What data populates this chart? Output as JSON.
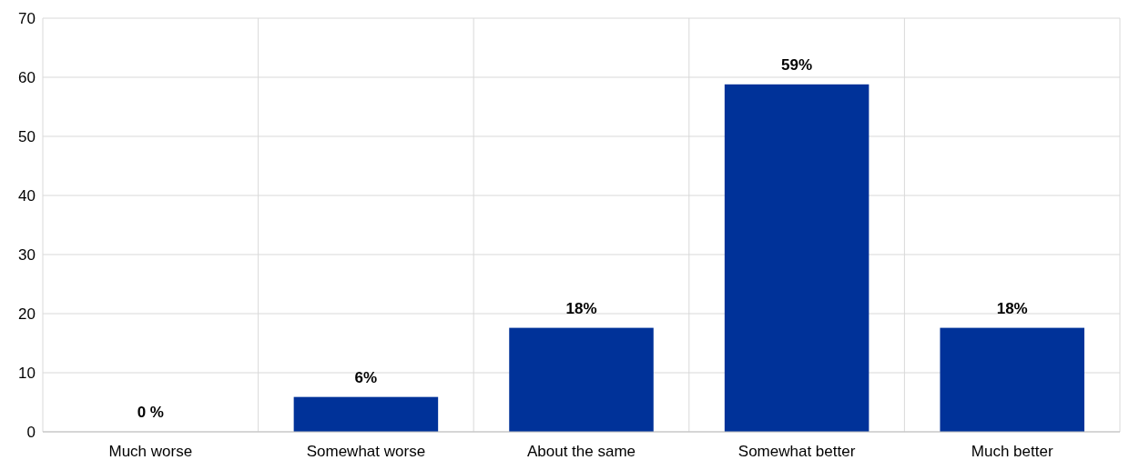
{
  "chart_data": {
    "type": "bar",
    "categories": [
      "Much worse",
      "Somewhat worse",
      "About the same",
      "Somewhat better",
      "Much better"
    ],
    "values": [
      0,
      5.9,
      17.6,
      58.8,
      17.6
    ],
    "value_labels": [
      "0 %",
      "6%",
      "18%",
      "59%",
      "18%"
    ],
    "color": "#003299",
    "ylim": [
      0,
      70
    ],
    "yticks": [
      0,
      10,
      20,
      30,
      40,
      50,
      60,
      70
    ],
    "grid": true
  }
}
